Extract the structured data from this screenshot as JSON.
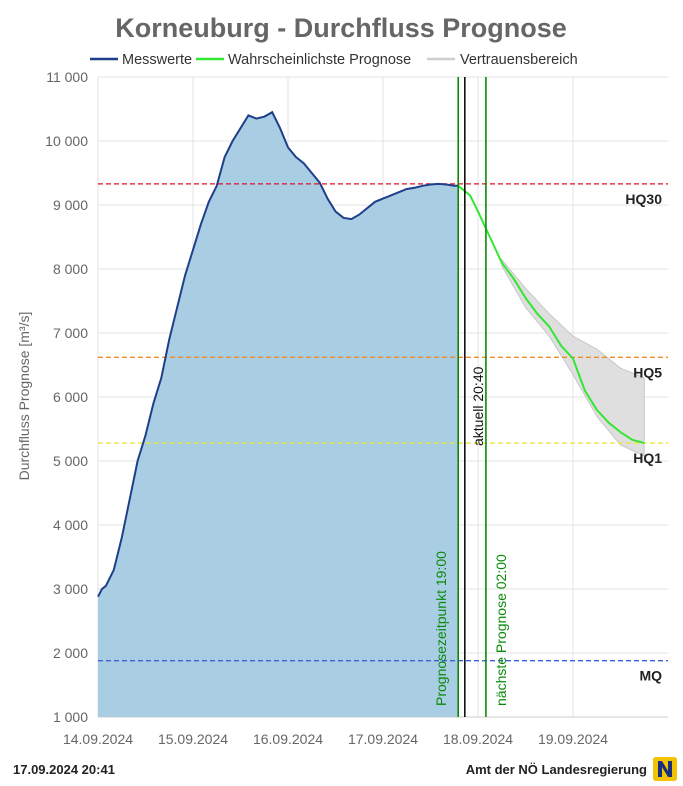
{
  "chart_data": {
    "type": "area",
    "title": "Korneuburg - Durchfluss Prognose",
    "ylabel": "Durchfluss Prognose [m³/s]",
    "ylim": [
      1000,
      11000
    ],
    "yticks": [
      1000,
      2000,
      3000,
      4000,
      5000,
      6000,
      7000,
      8000,
      9000,
      10000,
      11000
    ],
    "ytick_labels": [
      "1 000",
      "2 000",
      "3 000",
      "4 000",
      "5 000",
      "6 000",
      "7 000",
      "8 000",
      "9 000",
      "10 000",
      "11 000"
    ],
    "xlim": [
      "2024-09-14T00:00",
      "2024-09-20T00:00"
    ],
    "xticks": [
      "2024-09-14T00:00",
      "2024-09-15T00:00",
      "2024-09-16T00:00",
      "2024-09-17T00:00",
      "2024-09-18T00:00",
      "2024-09-19T00:00"
    ],
    "xtick_labels": [
      "14.09.2024",
      "15.09.2024",
      "16.09.2024",
      "17.09.2024",
      "18.09.2024",
      "19.09.2024"
    ],
    "grid": true,
    "legend_position": "top",
    "series": [
      {
        "name": "Messwerte",
        "color": "#1f3f8a",
        "fill": "#a9cde3",
        "x": [
          "2024-09-14T00:00",
          "2024-09-14T01:00",
          "2024-09-14T02:00",
          "2024-09-14T04:00",
          "2024-09-14T06:00",
          "2024-09-14T08:00",
          "2024-09-14T10:00",
          "2024-09-14T12:00",
          "2024-09-14T14:00",
          "2024-09-14T16:00",
          "2024-09-14T18:00",
          "2024-09-14T20:00",
          "2024-09-14T22:00",
          "2024-09-15T00:00",
          "2024-09-15T02:00",
          "2024-09-15T04:00",
          "2024-09-15T06:00",
          "2024-09-15T08:00",
          "2024-09-15T10:00",
          "2024-09-15T12:00",
          "2024-09-15T14:00",
          "2024-09-15T16:00",
          "2024-09-15T18:00",
          "2024-09-15T20:00",
          "2024-09-15T22:00",
          "2024-09-16T00:00",
          "2024-09-16T02:00",
          "2024-09-16T04:00",
          "2024-09-16T06:00",
          "2024-09-16T08:00",
          "2024-09-16T10:00",
          "2024-09-16T12:00",
          "2024-09-16T14:00",
          "2024-09-16T16:00",
          "2024-09-16T18:00",
          "2024-09-16T20:00",
          "2024-09-16T22:00",
          "2024-09-17T00:00",
          "2024-09-17T02:00",
          "2024-09-17T04:00",
          "2024-09-17T06:00",
          "2024-09-17T08:00",
          "2024-09-17T10:00",
          "2024-09-17T12:00",
          "2024-09-17T14:00",
          "2024-09-17T16:00",
          "2024-09-17T18:00",
          "2024-09-17T19:00"
        ],
        "values": [
          2880,
          3000,
          3050,
          3300,
          3800,
          4400,
          5000,
          5400,
          5900,
          6300,
          6900,
          7400,
          7900,
          8300,
          8700,
          9050,
          9300,
          9750,
          10000,
          10200,
          10400,
          10350,
          10380,
          10450,
          10200,
          9900,
          9750,
          9650,
          9500,
          9350,
          9100,
          8900,
          8800,
          8780,
          8850,
          8950,
          9050,
          9100,
          9150,
          9200,
          9250,
          9270,
          9300,
          9320,
          9330,
          9320,
          9300,
          9300
        ]
      },
      {
        "name": "Wahrscheinlichste Prognose",
        "color": "#33e633",
        "x": [
          "2024-09-17T19:00",
          "2024-09-17T22:00",
          "2024-09-18T00:00",
          "2024-09-18T03:00",
          "2024-09-18T06:00",
          "2024-09-18T09:00",
          "2024-09-18T12:00",
          "2024-09-18T15:00",
          "2024-09-18T18:00",
          "2024-09-18T21:00",
          "2024-09-19T00:00",
          "2024-09-19T03:00",
          "2024-09-19T06:00",
          "2024-09-19T09:00",
          "2024-09-19T12:00",
          "2024-09-19T15:00",
          "2024-09-19T18:00"
        ],
        "values": [
          9300,
          9150,
          8900,
          8500,
          8100,
          7850,
          7550,
          7300,
          7100,
          6800,
          6600,
          6100,
          5800,
          5600,
          5450,
          5330,
          5280
        ]
      },
      {
        "name": "Vertrauensbereich",
        "color": "#cfcfcf",
        "fill": "#d9d9d9",
        "x": [
          "2024-09-18T06:00",
          "2024-09-18T12:00",
          "2024-09-18T18:00",
          "2024-09-19T00:00",
          "2024-09-19T06:00",
          "2024-09-19T12:00",
          "2024-09-19T18:00"
        ],
        "upper": [
          8150,
          7700,
          7300,
          6950,
          6750,
          6450,
          6300
        ],
        "lower": [
          8050,
          7400,
          6950,
          6350,
          5700,
          5250,
          5080
        ]
      }
    ],
    "thresholds": [
      {
        "label": "HQ30",
        "value": 9330,
        "color": "#e0102a"
      },
      {
        "label": "HQ5",
        "value": 6620,
        "color": "#f08a24"
      },
      {
        "label": "HQ1",
        "value": 5280,
        "color": "#e8e83c"
      },
      {
        "label": "MQ",
        "value": 1880,
        "color": "#3a5fd6"
      }
    ],
    "vertical_lines": [
      {
        "label": "Prognosezeitpunkt 19:00",
        "x": "2024-09-17T19:00",
        "color": "#0a8a0a"
      },
      {
        "label": "aktuell 20:40",
        "x": "2024-09-17T20:40",
        "color": "#111111"
      },
      {
        "label": "nächste Prognose 02:00",
        "x": "2024-09-18T02:00",
        "color": "#0a8a0a"
      }
    ]
  },
  "footer": {
    "timestamp": "17.09.2024 20:41",
    "source": "Amt der NÖ Landesregierung",
    "logo_letter": "N"
  }
}
